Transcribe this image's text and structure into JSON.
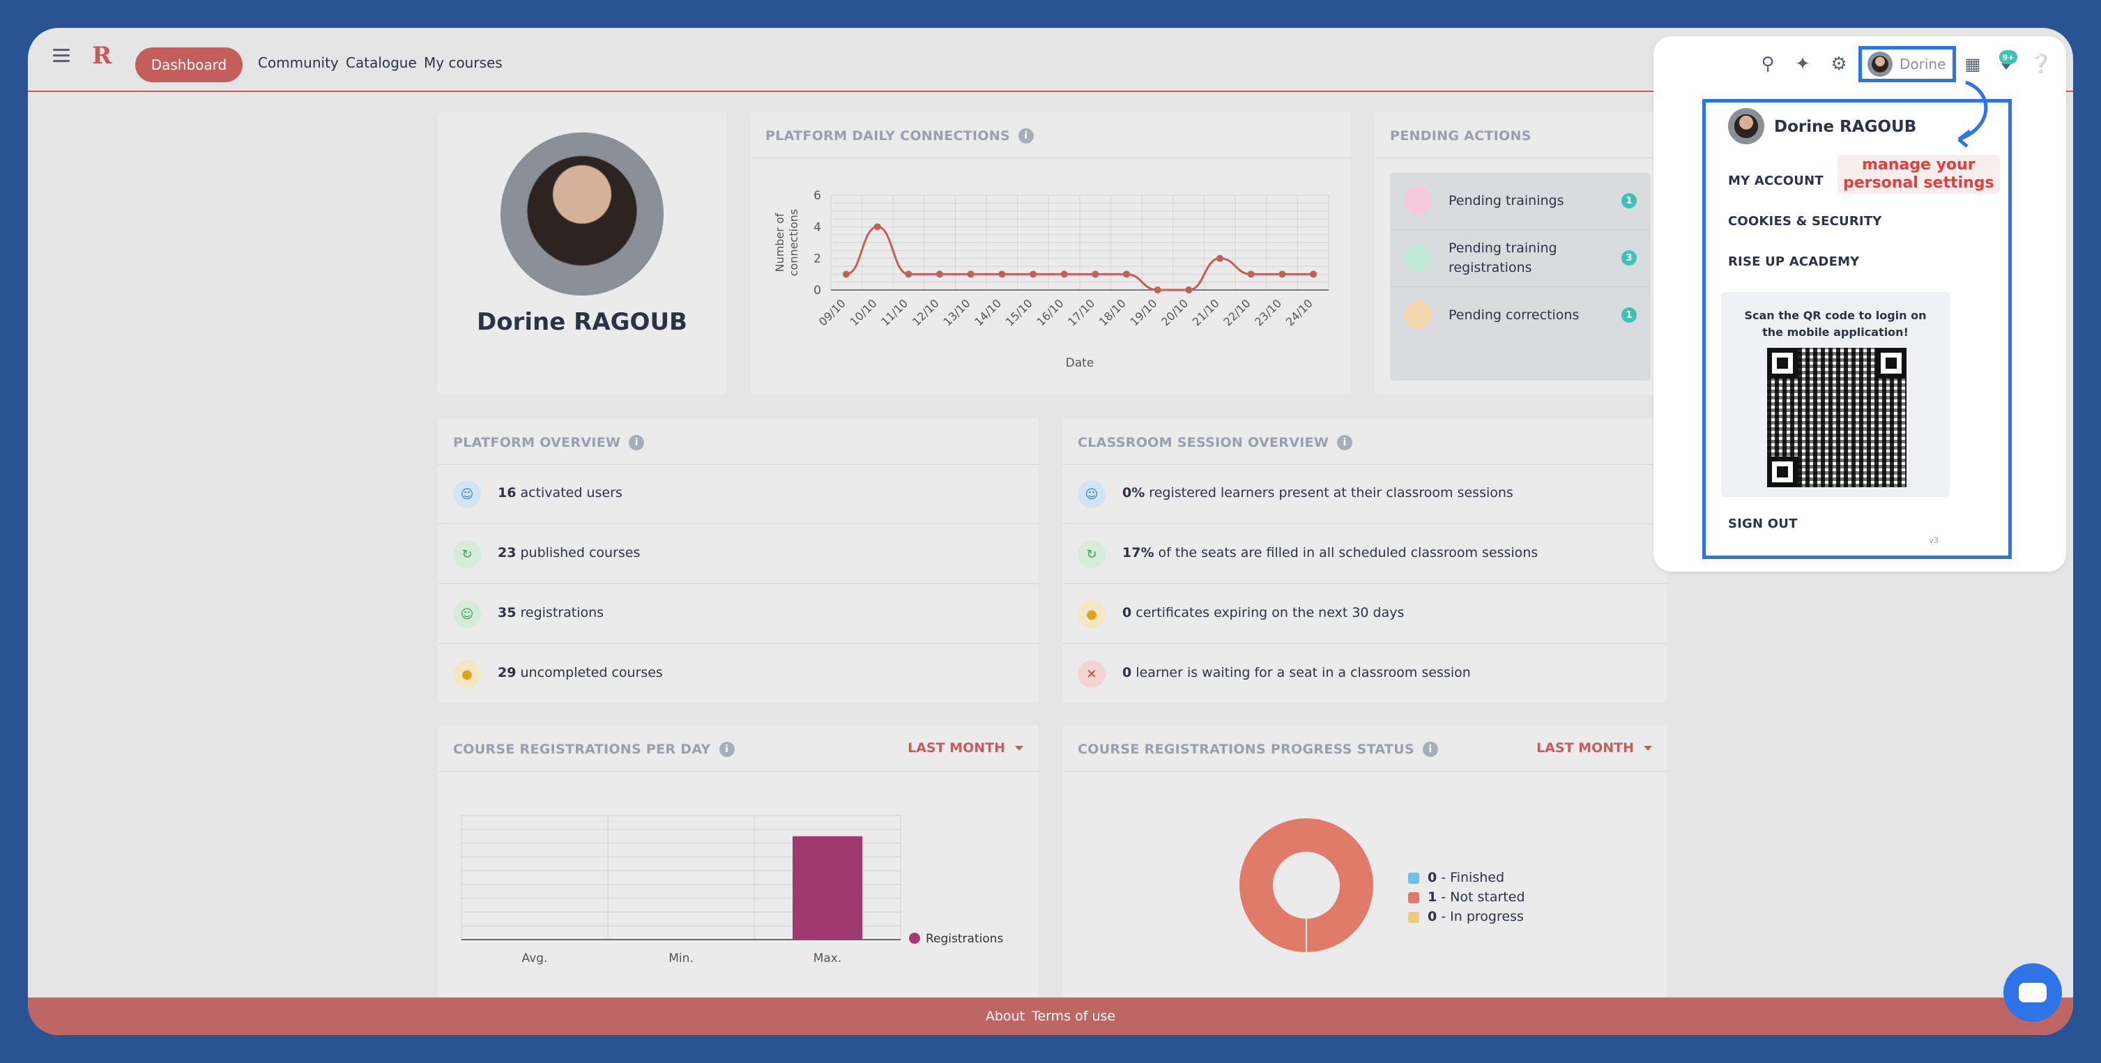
{
  "nav": {
    "dashboard": "Dashboard",
    "community": "Community",
    "catalogue": "Catalogue",
    "my_courses": "My courses",
    "logo": "R"
  },
  "user": {
    "short_name": "Dorine",
    "full_name": "Dorine RAGOUB"
  },
  "notification_badge": "9+",
  "profile": {
    "name": "Dorine RAGOUB"
  },
  "daily_connections": {
    "title": "PLATFORM DAILY CONNECTIONS",
    "chart_data": {
      "type": "line",
      "title": "PLATFORM DAILY CONNECTIONS",
      "xlabel": "Date",
      "ylabel": "Number of connections",
      "ylim": [
        0,
        6
      ],
      "yticks": [
        "0",
        "2",
        "4",
        "6"
      ],
      "categories": [
        "09/10",
        "10/10",
        "11/10",
        "12/10",
        "13/10",
        "14/10",
        "15/10",
        "16/10",
        "17/10",
        "18/10",
        "19/10",
        "20/10",
        "21/10",
        "22/10",
        "23/10",
        "24/10"
      ],
      "values": [
        1,
        4,
        1,
        1,
        1,
        1,
        1,
        1,
        1,
        1,
        0,
        0,
        2,
        1,
        1,
        1
      ],
      "color": "#c45e5a",
      "grid": true
    }
  },
  "pending": {
    "title": "PENDING ACTIONS",
    "items": [
      {
        "label": "Pending trainings",
        "count": "1",
        "color": "#e86aa0"
      },
      {
        "label": "Pending training registrations",
        "count": "3",
        "color": "#57c7a8"
      },
      {
        "label": "Pending corrections",
        "count": "1",
        "color": "#e8a04a"
      }
    ]
  },
  "platform_overview": {
    "title": "PLATFORM OVERVIEW",
    "rows": [
      {
        "value": "16",
        "text": " activated users",
        "icon": "user-icon"
      },
      {
        "value": "23",
        "text": " published courses",
        "icon": "refresh-icon"
      },
      {
        "value": "35",
        "text": " registrations",
        "icon": "user-icon"
      },
      {
        "value": "29",
        "text": " uncompleted courses",
        "icon": "warning-icon"
      }
    ]
  },
  "classroom_overview": {
    "title": "CLASSROOM SESSION OVERVIEW",
    "rows": [
      {
        "value": "0%",
        "text": " registered learners present at their classroom sessions",
        "icon": "user-icon"
      },
      {
        "value": "17%",
        "text": " of the seats are filled in all scheduled classroom sessions",
        "icon": "refresh-icon"
      },
      {
        "value": "0",
        "text": " certificates expiring on the next 30 days",
        "icon": "warning-icon"
      },
      {
        "value": "0",
        "text": " learner is waiting for a seat in a classroom session",
        "icon": "error-icon"
      }
    ]
  },
  "registrations_per_day": {
    "title": "COURSE REGISTRATIONS PER DAY",
    "period": "LAST MONTH",
    "chart_data": {
      "type": "bar",
      "categories": [
        "Avg.",
        "Min.",
        "Max."
      ],
      "series": [
        {
          "name": "Registrations",
          "values": [
            0,
            0,
            1
          ]
        }
      ],
      "color": "#a03a6e",
      "ylim": [
        0,
        1.2
      ],
      "grid": true,
      "legend": "right"
    }
  },
  "progress_status": {
    "title": "COURSE REGISTRATIONS PROGRESS STATUS",
    "period": "LAST MONTH",
    "chart_data": {
      "type": "pie",
      "categories": [
        "Finished",
        "Not started",
        "In progress"
      ],
      "values": [
        0,
        1,
        0
      ],
      "colors": [
        "#6cc2ea",
        "#e07b6a",
        "#eccb7a"
      ],
      "legend": "right"
    },
    "legend": [
      {
        "value": "0",
        "label": " - Finished"
      },
      {
        "value": "1",
        "label": " - Not started"
      },
      {
        "value": "0",
        "label": " - In progress"
      }
    ]
  },
  "menu": {
    "name": "Dorine RAGOUB",
    "my_account": "MY ACCOUNT",
    "cookies": "COOKIES & SECURITY",
    "academy": "RISE UP ACADEMY",
    "qr_text": "Scan the QR code to login on the mobile application!",
    "sign_out": "SIGN OUT",
    "version": "v3"
  },
  "annotation": {
    "line1": "manage your",
    "line2": "personal settings"
  },
  "footer": {
    "about": "About",
    "terms": "Terms of use"
  }
}
